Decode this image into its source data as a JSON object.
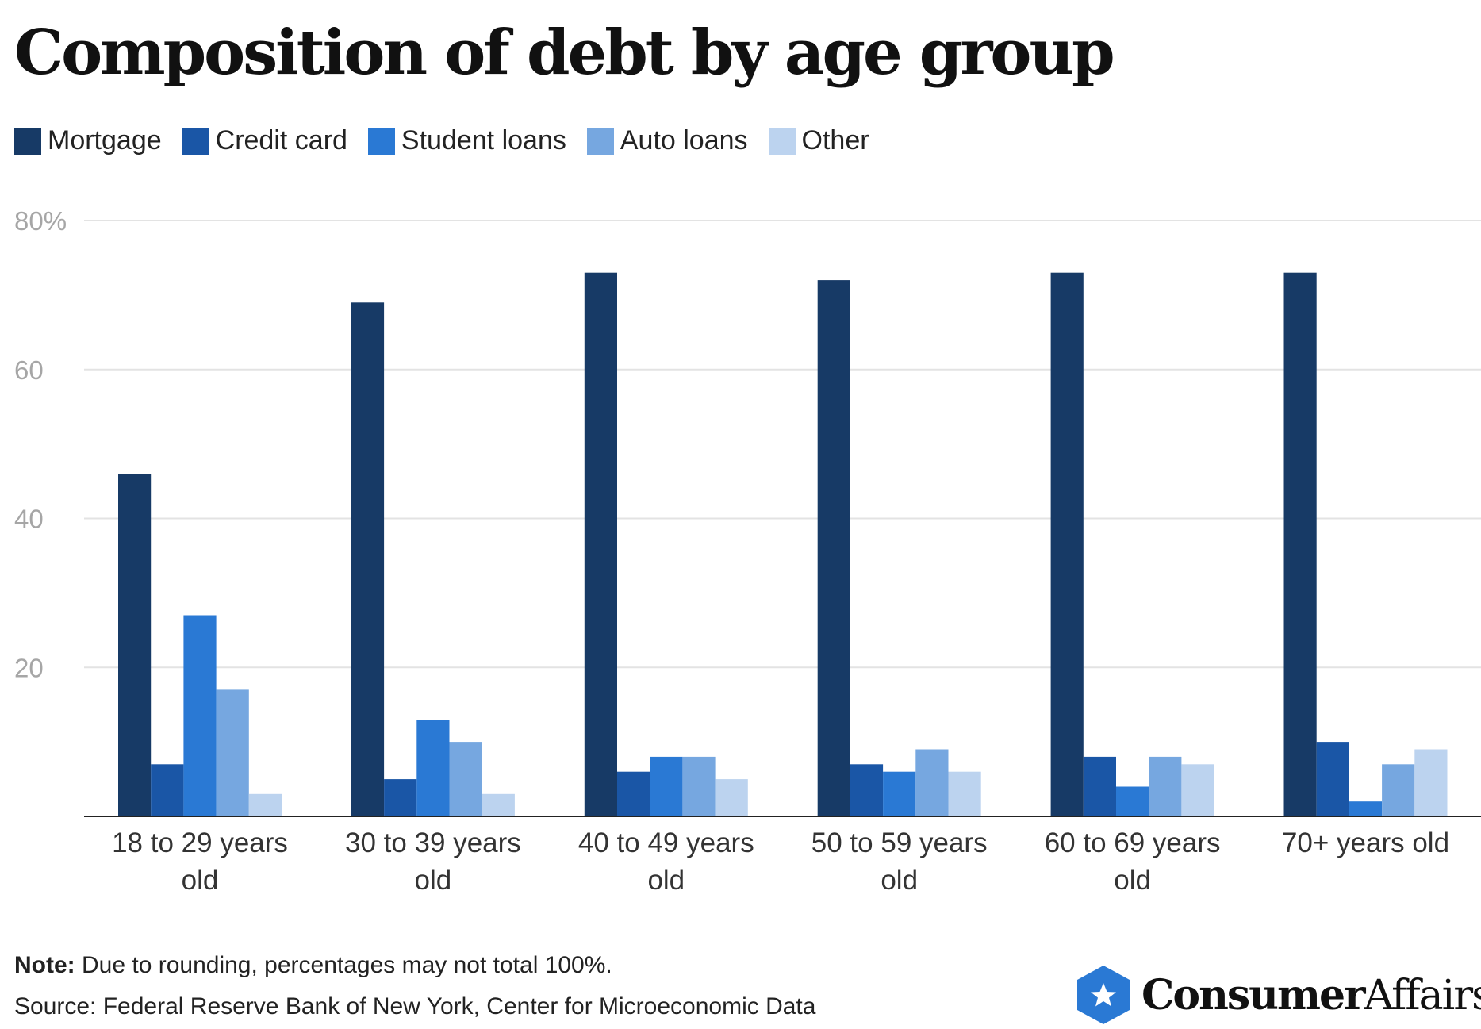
{
  "chart_data": {
    "type": "bar",
    "title": "Composition of debt by age group",
    "categories": [
      [
        "18 to 29 years",
        "old"
      ],
      [
        "30 to 39 years",
        "old"
      ],
      [
        "40 to 49 years",
        "old"
      ],
      [
        "50 to 59 years",
        "old"
      ],
      [
        "60 to 69 years",
        "old"
      ],
      [
        "70+ years old"
      ]
    ],
    "series": [
      {
        "name": "Mortgage",
        "color": "#173a66",
        "values": [
          46,
          69,
          73,
          72,
          73,
          73
        ]
      },
      {
        "name": "Credit card",
        "color": "#1a56a6",
        "values": [
          7,
          5,
          6,
          7,
          8,
          10
        ]
      },
      {
        "name": "Student loans",
        "color": "#2a79d4",
        "values": [
          27,
          13,
          8,
          6,
          4,
          2
        ]
      },
      {
        "name": "Auto loans",
        "color": "#76a7e0",
        "values": [
          17,
          10,
          8,
          9,
          8,
          7
        ]
      },
      {
        "name": "Other",
        "color": "#bcd3ef",
        "values": [
          3,
          3,
          5,
          6,
          7,
          9
        ]
      }
    ],
    "yticks": [
      {
        "value": 20,
        "label": "20"
      },
      {
        "value": 40,
        "label": "40"
      },
      {
        "value": 60,
        "label": "60"
      },
      {
        "value": 80,
        "label": "80%"
      }
    ],
    "ylim": [
      0,
      80
    ],
    "grid": true,
    "legend_position": "top-left"
  },
  "footer": {
    "note_label": "Note:",
    "note_text": " Due to rounding, percentages may not total 100%.",
    "source": "Source: Federal Reserve Bank of New York, Center for Microeconomic Data"
  },
  "brand": {
    "name_bold": "Consumer",
    "name_regular": "Affairs",
    "logo_icon": "star-hexagon-icon",
    "logo_color": "#2a79d4"
  }
}
